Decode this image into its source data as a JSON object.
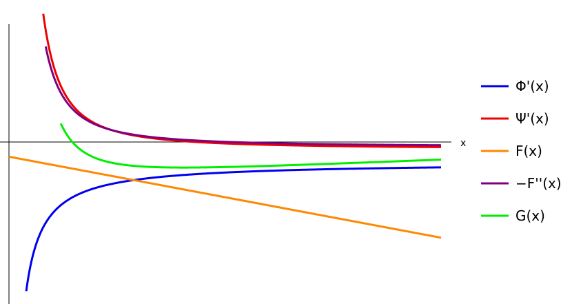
{
  "chart_data": {
    "type": "line",
    "xlabel": "x",
    "ylabel": "",
    "xlim": [
      0,
      10
    ],
    "ylim": [
      -4.2,
      3.4
    ],
    "grid": false,
    "tick_labels": false,
    "legend_placement": "right",
    "series": [
      {
        "name": "Φ'(x)",
        "color": "#0000ee",
        "fn": "phi_prime",
        "x_start": 0.4,
        "x_end": 10
      },
      {
        "name": "Ψ'(x)",
        "color": "#ee0000",
        "fn": "psi_prime",
        "x_start": 0.7,
        "x_end": 10
      },
      {
        "name": "F(x)",
        "color": "#ff8800",
        "fn": "f",
        "x_start": 0,
        "x_end": 10
      },
      {
        "name": "−F''(x)",
        "color": "#800080",
        "fn": "neg_f_pp",
        "x_start": 0.85,
        "x_end": 10
      },
      {
        "name": "G(x)",
        "color": "#00ee00",
        "fn": "g",
        "x_start": 1.2,
        "x_end": 10
      }
    ]
  }
}
